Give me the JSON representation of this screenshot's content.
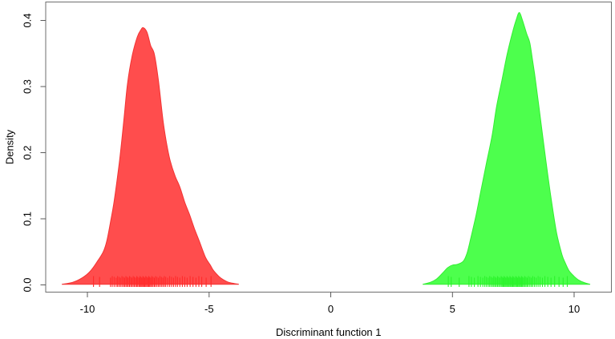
{
  "figure": {
    "background": "#ffffff",
    "box_color": "#6e6e6e",
    "tick_color": "#5a5a5a",
    "text_color": "#000000"
  },
  "chart_data": {
    "type": "area",
    "title": "",
    "xlabel": "Discriminant function 1",
    "ylabel": "Density",
    "xlim": [
      -11.73,
      11.53
    ],
    "ylim": [
      -0.011,
      0.428
    ],
    "grid": false,
    "legend": "none",
    "x_ticks": [
      {
        "value": -10,
        "label": "-10"
      },
      {
        "value": -5,
        "label": "-5"
      },
      {
        "value": 0,
        "label": "0"
      },
      {
        "value": 5,
        "label": "5"
      },
      {
        "value": 10,
        "label": "10"
      }
    ],
    "y_ticks": [
      {
        "value": 0.0,
        "label": "0.0"
      },
      {
        "value": 0.1,
        "label": "0.1"
      },
      {
        "value": 0.2,
        "label": "0.2"
      },
      {
        "value": 0.3,
        "label": "0.3"
      },
      {
        "value": 0.4,
        "label": "0.4"
      }
    ],
    "series": [
      {
        "name": "red-group-density",
        "fill": "#ff4d4d",
        "stroke": "#f23333",
        "rug_color": "#ff2a2a",
        "peak": {
          "x": -7.7,
          "density": 0.389
        },
        "points": [
          [
            -11.05,
            0.001
          ],
          [
            -10.6,
            0.004
          ],
          [
            -10.2,
            0.011
          ],
          [
            -9.9,
            0.02
          ],
          [
            -9.6,
            0.035
          ],
          [
            -9.35,
            0.05
          ],
          [
            -9.2,
            0.067
          ],
          [
            -9.05,
            0.095
          ],
          [
            -8.9,
            0.127
          ],
          [
            -8.68,
            0.188
          ],
          [
            -8.5,
            0.25
          ],
          [
            -8.35,
            0.305
          ],
          [
            -8.15,
            0.348
          ],
          [
            -7.95,
            0.375
          ],
          [
            -7.8,
            0.386
          ],
          [
            -7.7,
            0.389
          ],
          [
            -7.55,
            0.382
          ],
          [
            -7.4,
            0.362
          ],
          [
            -7.25,
            0.349
          ],
          [
            -7.08,
            0.309
          ],
          [
            -6.89,
            0.248
          ],
          [
            -6.75,
            0.215
          ],
          [
            -6.6,
            0.188
          ],
          [
            -6.4,
            0.165
          ],
          [
            -6.2,
            0.148
          ],
          [
            -6.0,
            0.125
          ],
          [
            -5.81,
            0.107
          ],
          [
            -5.6,
            0.085
          ],
          [
            -5.41,
            0.067
          ],
          [
            -5.15,
            0.042
          ],
          [
            -4.95,
            0.03
          ],
          [
            -4.82,
            0.022
          ],
          [
            -4.6,
            0.013
          ],
          [
            -4.42,
            0.008
          ],
          [
            -4.2,
            0.004
          ],
          [
            -3.95,
            0.002
          ],
          [
            -3.78,
            0.001
          ]
        ],
        "rug_x": [
          -9.75,
          -9.5,
          -9.05,
          -8.98,
          -8.9,
          -8.82,
          -8.76,
          -8.7,
          -8.64,
          -8.58,
          -8.52,
          -8.47,
          -8.42,
          -8.37,
          -8.32,
          -8.27,
          -8.22,
          -8.17,
          -8.12,
          -8.07,
          -8.02,
          -7.97,
          -7.93,
          -7.88,
          -7.84,
          -7.8,
          -7.76,
          -7.72,
          -7.68,
          -7.64,
          -7.6,
          -7.56,
          -7.52,
          -7.48,
          -7.44,
          -7.4,
          -7.35,
          -7.3,
          -7.25,
          -7.2,
          -7.14,
          -7.08,
          -7.02,
          -6.96,
          -6.9,
          -6.84,
          -6.78,
          -6.7,
          -6.62,
          -6.54,
          -6.46,
          -6.38,
          -6.3,
          -6.2,
          -6.1,
          -6.0,
          -5.9,
          -5.78,
          -5.66,
          -5.54,
          -5.42,
          -5.3,
          -5.12,
          -4.92
        ]
      },
      {
        "name": "green-group-density",
        "fill": "#4dff4d",
        "stroke": "#33ee33",
        "rug_color": "#2bf32b",
        "peak": {
          "x": 7.75,
          "density": 0.412
        },
        "points": [
          [
            3.78,
            0.001
          ],
          [
            4.1,
            0.004
          ],
          [
            4.35,
            0.009
          ],
          [
            4.6,
            0.018
          ],
          [
            4.8,
            0.026
          ],
          [
            5.0,
            0.03
          ],
          [
            5.2,
            0.031
          ],
          [
            5.45,
            0.036
          ],
          [
            5.6,
            0.048
          ],
          [
            5.75,
            0.07
          ],
          [
            5.98,
            0.107
          ],
          [
            6.2,
            0.148
          ],
          [
            6.42,
            0.188
          ],
          [
            6.64,
            0.228
          ],
          [
            6.81,
            0.269
          ],
          [
            7.03,
            0.309
          ],
          [
            7.25,
            0.349
          ],
          [
            7.47,
            0.382
          ],
          [
            7.62,
            0.401
          ],
          [
            7.75,
            0.412
          ],
          [
            7.88,
            0.4
          ],
          [
            8.05,
            0.38
          ],
          [
            8.18,
            0.366
          ],
          [
            8.3,
            0.338
          ],
          [
            8.42,
            0.308
          ],
          [
            8.63,
            0.248
          ],
          [
            8.84,
            0.188
          ],
          [
            9.07,
            0.127
          ],
          [
            9.28,
            0.079
          ],
          [
            9.5,
            0.046
          ],
          [
            9.65,
            0.032
          ],
          [
            9.8,
            0.021
          ],
          [
            10.0,
            0.013
          ],
          [
            10.2,
            0.007
          ],
          [
            10.45,
            0.003
          ],
          [
            10.66,
            0.001
          ]
        ],
        "rug_x": [
          4.83,
          4.95,
          5.28,
          5.68,
          5.78,
          5.9,
          6.05,
          6.15,
          6.25,
          6.33,
          6.4,
          6.47,
          6.53,
          6.59,
          6.65,
          6.7,
          6.75,
          6.8,
          6.85,
          6.9,
          6.95,
          7.0,
          7.04,
          7.08,
          7.12,
          7.16,
          7.2,
          7.24,
          7.28,
          7.32,
          7.36,
          7.4,
          7.44,
          7.48,
          7.52,
          7.56,
          7.6,
          7.64,
          7.68,
          7.72,
          7.76,
          7.8,
          7.84,
          7.88,
          7.92,
          7.97,
          8.02,
          8.07,
          8.12,
          8.18,
          8.24,
          8.3,
          8.37,
          8.44,
          8.52,
          8.6,
          8.7,
          8.8,
          8.92,
          9.05,
          9.2,
          9.38,
          9.55,
          9.72
        ]
      }
    ]
  }
}
